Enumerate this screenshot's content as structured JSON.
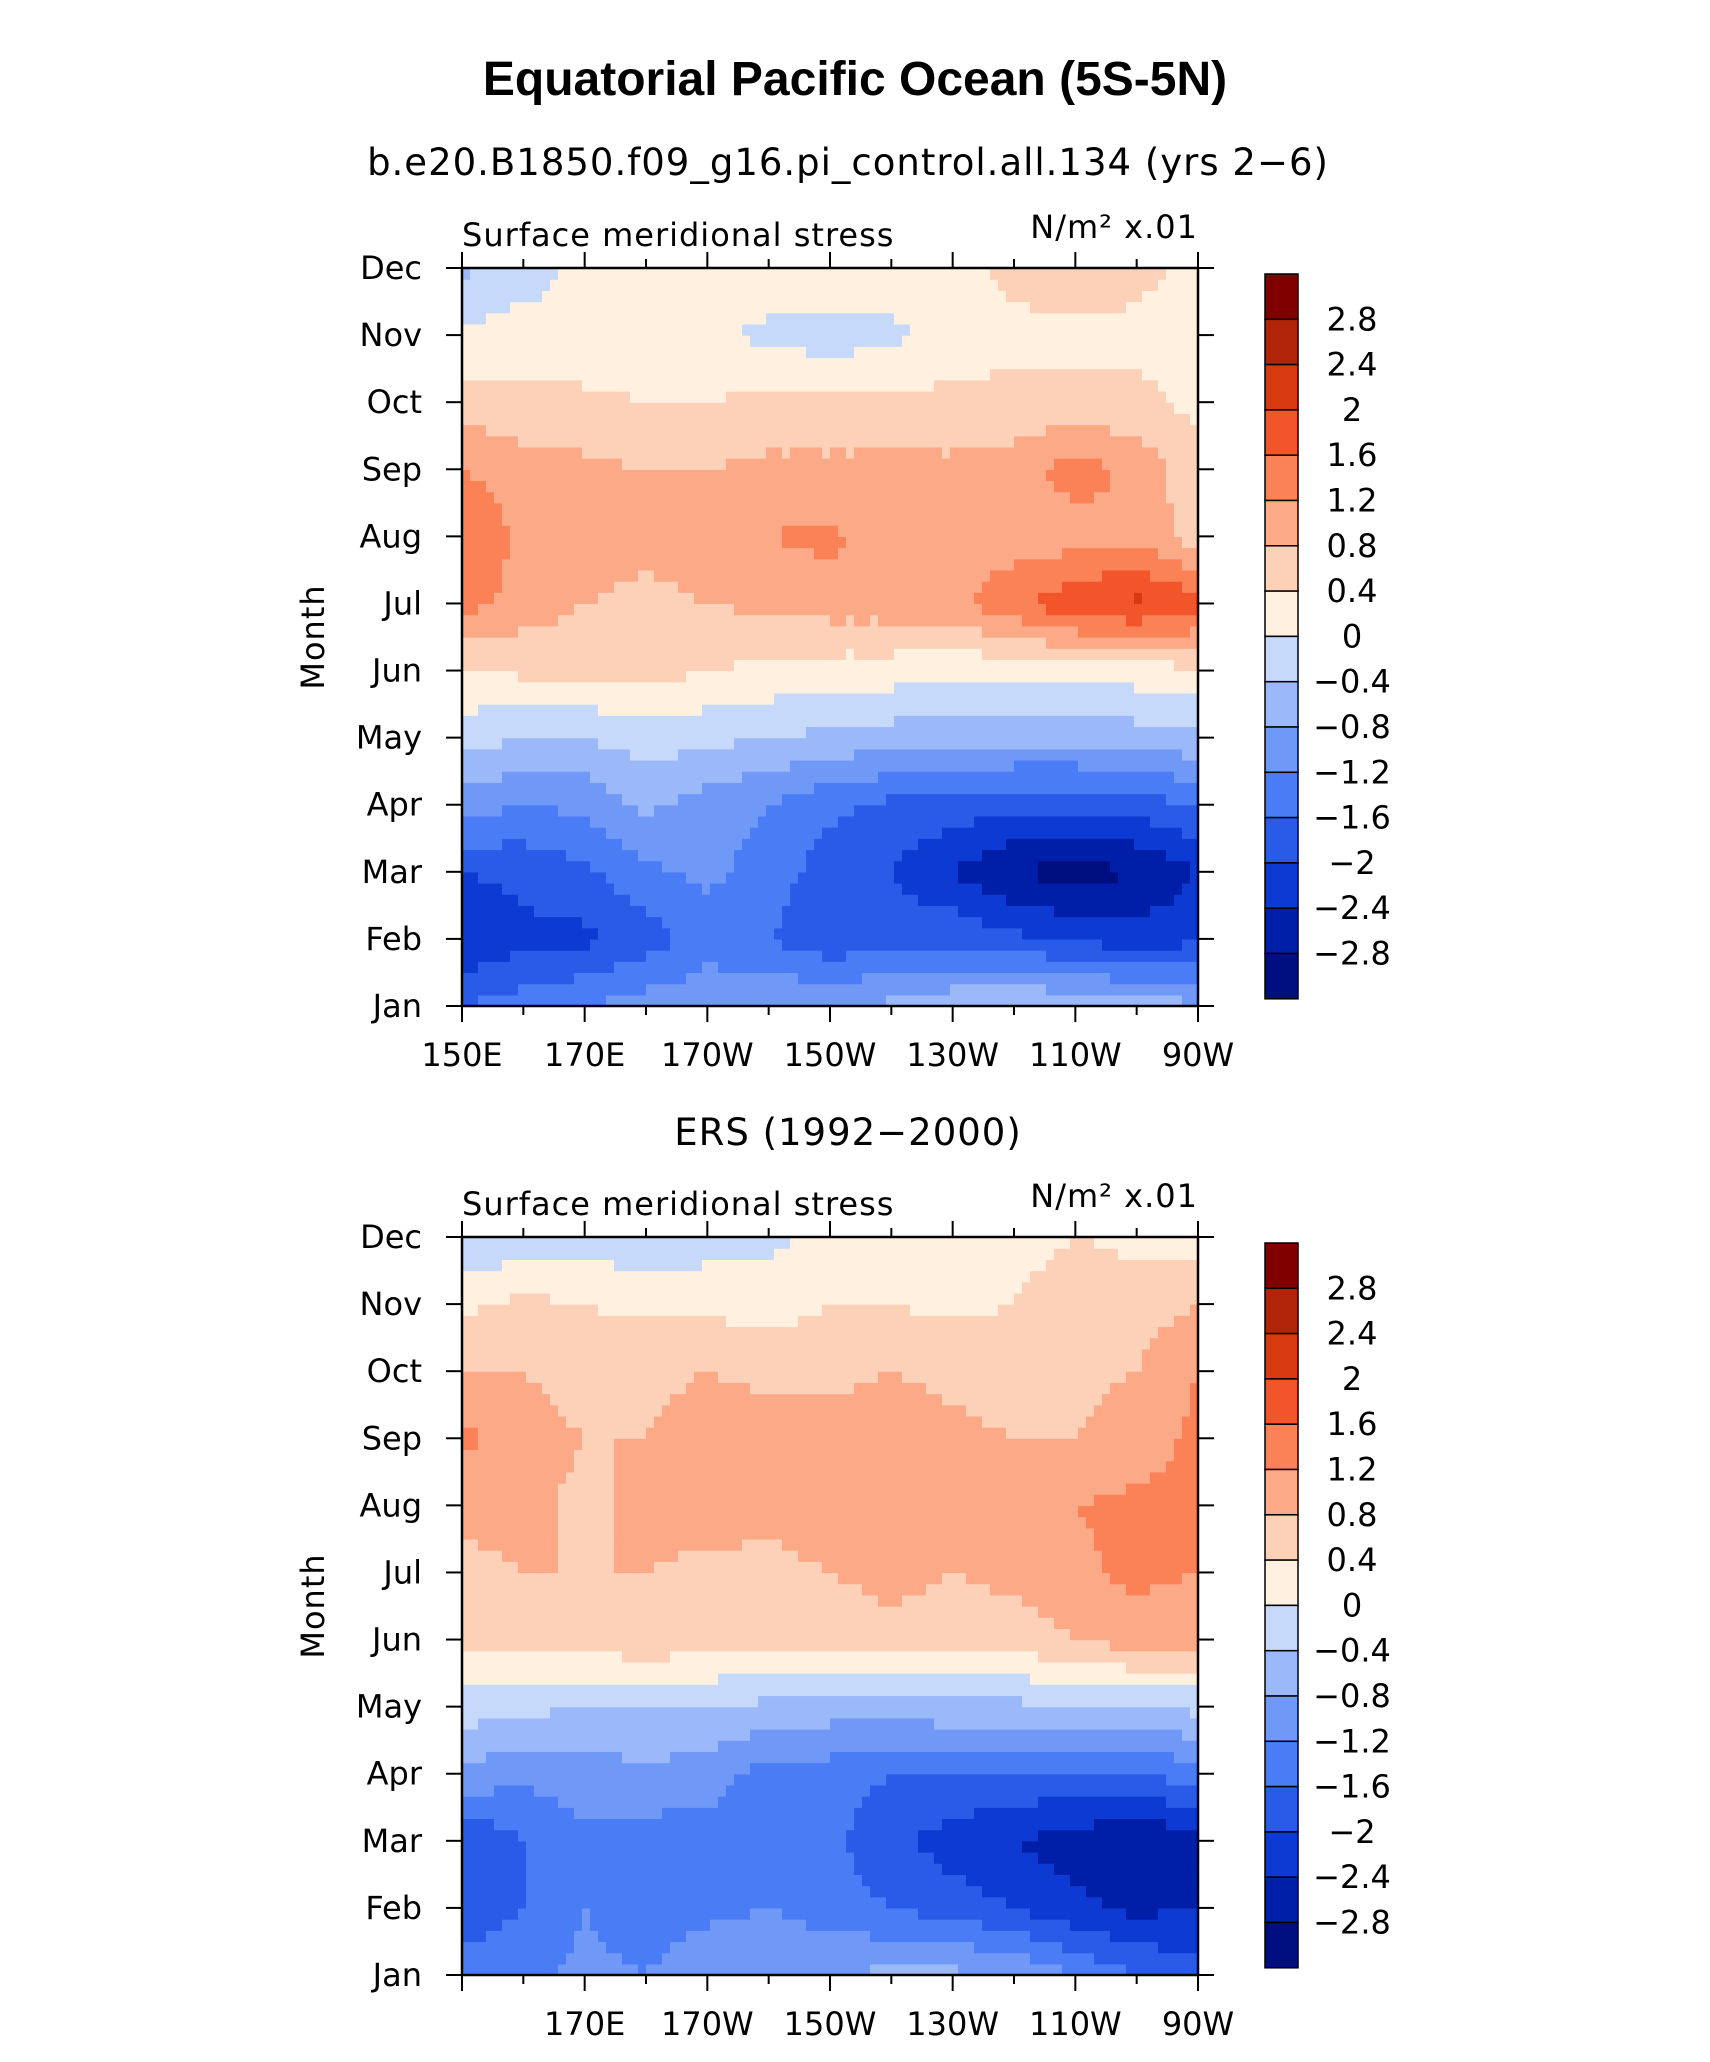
{
  "figure": {
    "title": "Equatorial Pacific Ocean (5S-5N)"
  },
  "colorbar": {
    "colors": [
      "#000f80",
      "#001fa8",
      "#0d3ad2",
      "#2a5ae8",
      "#4a7cf5",
      "#7099f7",
      "#9bb8f9",
      "#c6d9fb",
      "#fff0e0",
      "#fdd0b8",
      "#fca987",
      "#fb8257",
      "#f2552a",
      "#d63a0e",
      "#b02509",
      "#800000"
    ],
    "labels": [
      "2.8",
      "2.4",
      "2",
      "1.6",
      "1.2",
      "0.8",
      "0.4",
      "0",
      "−0.4",
      "−0.8",
      "−1.2",
      "−1.6",
      "−2",
      "−2.4",
      "−2.8"
    ]
  },
  "chart_data": [
    {
      "type": "heatmap",
      "subtitle": "b.e20.B1850.f09_g16.pi_control.all.134 (yrs 2−6)",
      "left_label": "Surface meridional stress",
      "right_label": "N/m² x.01",
      "ylabel": "Month",
      "xticks": [
        "150E",
        "170E",
        "170W",
        "150W",
        "130W",
        "110W",
        "90W"
      ],
      "yticks": [
        "Jan",
        "Feb",
        "Mar",
        "Apr",
        "May",
        "Jun",
        "Jul",
        "Aug",
        "Sep",
        "Oct",
        "Nov",
        "Dec"
      ],
      "xlim": [
        150,
        270
      ],
      "ylim": [
        1,
        12
      ],
      "x": [
        150,
        160,
        170,
        180,
        190,
        200,
        210,
        220,
        230,
        240,
        250,
        260,
        270
      ],
      "y": [
        1,
        2,
        3,
        4,
        5,
        6,
        7,
        8,
        9,
        10,
        11,
        12
      ],
      "z": [
        [
          -1.6,
          -1.4,
          -1.2,
          -1.0,
          -0.9,
          -0.8,
          -0.8,
          -0.7,
          -0.5,
          -0.4,
          -0.4,
          -0.6,
          -0.7
        ],
        [
          -2.4,
          -2.1,
          -2.1,
          -1.8,
          -1.4,
          -1.6,
          -1.9,
          -1.8,
          -1.7,
          -1.9,
          -2.1,
          -2.2,
          -2.1
        ],
        [
          -2.0,
          -1.9,
          -1.7,
          -1.3,
          -1.1,
          -1.4,
          -1.8,
          -2.0,
          -2.4,
          -2.8,
          -3.0,
          -2.8,
          -2.4
        ],
        [
          -1.0,
          -1.2,
          -1.1,
          -0.7,
          -1.0,
          -1.2,
          -1.5,
          -1.7,
          -1.8,
          -1.9,
          -1.9,
          -1.8,
          -1.6
        ],
        [
          -0.2,
          -0.4,
          -0.4,
          -0.2,
          -0.3,
          -0.4,
          -0.5,
          -0.6,
          -0.7,
          -0.7,
          -0.7,
          -0.6,
          -0.5
        ],
        [
          0.3,
          0.5,
          0.5,
          0.6,
          0.4,
          0.3,
          0.2,
          0.2,
          0.1,
          0.1,
          0.2,
          0.2,
          0.3
        ],
        [
          1.4,
          1.0,
          0.8,
          0.7,
          0.8,
          0.9,
          1.0,
          1.0,
          1.1,
          1.5,
          1.9,
          2.1,
          1.8
        ],
        [
          1.6,
          1.1,
          1.0,
          0.9,
          1.0,
          1.2,
          1.3,
          0.9,
          0.9,
          1.0,
          1.0,
          1.1,
          0.6
        ],
        [
          1.2,
          1.0,
          0.9,
          0.8,
          0.8,
          0.9,
          0.9,
          0.9,
          0.9,
          1.0,
          1.4,
          1.1,
          0.5
        ],
        [
          0.6,
          0.5,
          0.5,
          0.4,
          0.4,
          0.5,
          0.5,
          0.5,
          0.5,
          0.5,
          0.5,
          0.5,
          0.3
        ],
        [
          0.1,
          0.2,
          0.1,
          0.2,
          0.1,
          -0.1,
          -0.2,
          -0.1,
          0.2,
          0.3,
          0.3,
          0.3,
          0.2
        ],
        [
          -0.5,
          -0.2,
          0.1,
          0.1,
          0.2,
          0.3,
          0.3,
          0.3,
          0.3,
          0.5,
          0.7,
          0.5,
          0.3
        ]
      ]
    },
    {
      "type": "heatmap",
      "subtitle": "ERS (1992−2000)",
      "left_label": "Surface meridional stress",
      "right_label": "N/m² x.01",
      "ylabel": "Month",
      "xticks": [
        "170E",
        "170W",
        "150W",
        "130W",
        "110W",
        "90W"
      ],
      "yticks": [
        "Jan",
        "Feb",
        "Mar",
        "Apr",
        "May",
        "Jun",
        "Jul",
        "Aug",
        "Sep",
        "Oct",
        "Nov",
        "Dec"
      ],
      "xlim": [
        150,
        270
      ],
      "ylim": [
        1,
        12
      ],
      "x": [
        150,
        160,
        170,
        180,
        190,
        200,
        210,
        220,
        230,
        240,
        250,
        260,
        270
      ],
      "y": [
        1,
        2,
        3,
        4,
        5,
        6,
        7,
        8,
        9,
        10,
        11,
        12
      ],
      "z": [
        [
          -1.4,
          -1.3,
          -1.1,
          -1.2,
          -0.9,
          -0.8,
          -0.8,
          -0.7,
          -0.7,
          -0.8,
          -1.2,
          -1.6,
          -1.8
        ],
        [
          -1.9,
          -1.6,
          -1.2,
          -1.4,
          -1.3,
          -1.2,
          -1.4,
          -1.6,
          -1.8,
          -2.0,
          -2.3,
          -2.5,
          -2.4
        ],
        [
          -2.0,
          -1.6,
          -1.3,
          -1.4,
          -1.4,
          -1.3,
          -1.5,
          -1.9,
          -2.2,
          -2.4,
          -2.6,
          -2.8,
          -2.6
        ],
        [
          -0.9,
          -1.1,
          -1.0,
          -0.9,
          -1.0,
          -1.4,
          -1.4,
          -1.6,
          -1.6,
          -1.7,
          -1.6,
          -1.6,
          -1.4
        ],
        [
          -0.2,
          -0.3,
          -0.4,
          -0.4,
          -0.4,
          -0.5,
          -0.6,
          -0.6,
          -0.5,
          -0.5,
          -0.4,
          -0.4,
          -0.3
        ],
        [
          0.5,
          0.6,
          0.6,
          0.7,
          0.6,
          0.5,
          0.6,
          0.7,
          0.6,
          0.6,
          0.8,
          1.0,
          0.9
        ],
        [
          0.7,
          0.8,
          0.8,
          0.8,
          0.7,
          0.7,
          0.8,
          0.9,
          0.8,
          0.9,
          1.1,
          1.3,
          1.2
        ],
        [
          0.9,
          0.9,
          0.7,
          0.9,
          1.0,
          0.9,
          1.0,
          1.0,
          0.9,
          0.9,
          1.2,
          1.3,
          1.3
        ],
        [
          1.3,
          1.0,
          0.8,
          0.8,
          1.0,
          1.0,
          1.0,
          1.0,
          0.9,
          0.8,
          0.8,
          1.0,
          1.3
        ],
        [
          0.8,
          0.8,
          0.6,
          0.7,
          0.8,
          0.7,
          0.7,
          0.8,
          0.7,
          0.6,
          0.7,
          0.8,
          1.2
        ],
        [
          0.3,
          0.5,
          0.4,
          0.3,
          0.3,
          0.2,
          0.4,
          0.4,
          0.3,
          0.4,
          0.7,
          0.6,
          0.8
        ],
        [
          -0.3,
          -0.3,
          -0.2,
          -0.3,
          -0.2,
          -0.1,
          0.1,
          0.1,
          0.1,
          0.2,
          0.4,
          0.3,
          0.2
        ]
      ]
    }
  ]
}
